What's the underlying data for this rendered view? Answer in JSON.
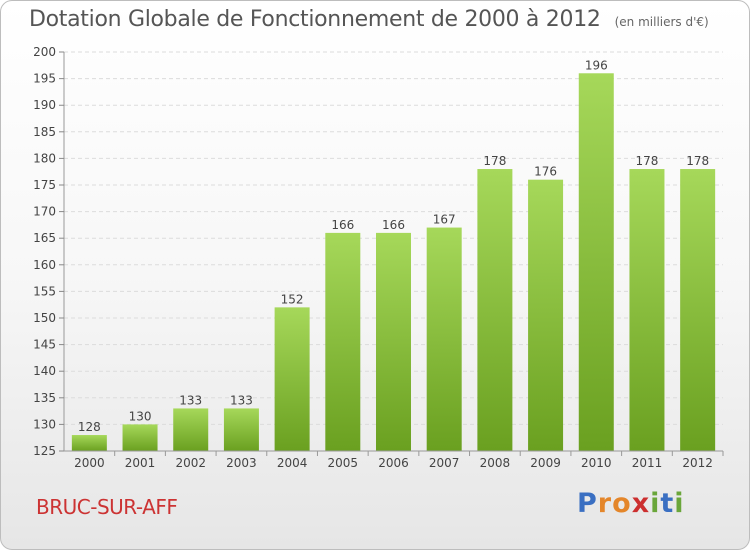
{
  "chart_data": {
    "type": "bar",
    "title": "Dotation Globale de Fonctionnement de 2000 à 2012",
    "subtitle": "(en milliers d'€)",
    "categories": [
      "2000",
      "2001",
      "2002",
      "2003",
      "2004",
      "2005",
      "2006",
      "2007",
      "2008",
      "2009",
      "2010",
      "2011",
      "2012"
    ],
    "values": [
      128,
      130,
      133,
      133,
      152,
      166,
      166,
      167,
      178,
      176,
      196,
      178,
      178
    ],
    "ylim": [
      125,
      200
    ],
    "yticks": [
      125,
      130,
      135,
      140,
      145,
      150,
      155,
      160,
      165,
      170,
      175,
      180,
      185,
      190,
      195,
      200
    ],
    "grid": true,
    "bar_color_light": "#a6d85a",
    "bar_color_dark": "#6aa020"
  },
  "commune": "BRUC-SUR-AFF",
  "logo": {
    "letters": [
      "P",
      "r",
      "o",
      "x",
      "i",
      "t",
      "i"
    ],
    "colors": [
      "#3a6fc2",
      "#e4862a",
      "#e4862a",
      "#cc2f2f",
      "#6aa63a",
      "#3a6fc2",
      "#6aa63a"
    ]
  }
}
